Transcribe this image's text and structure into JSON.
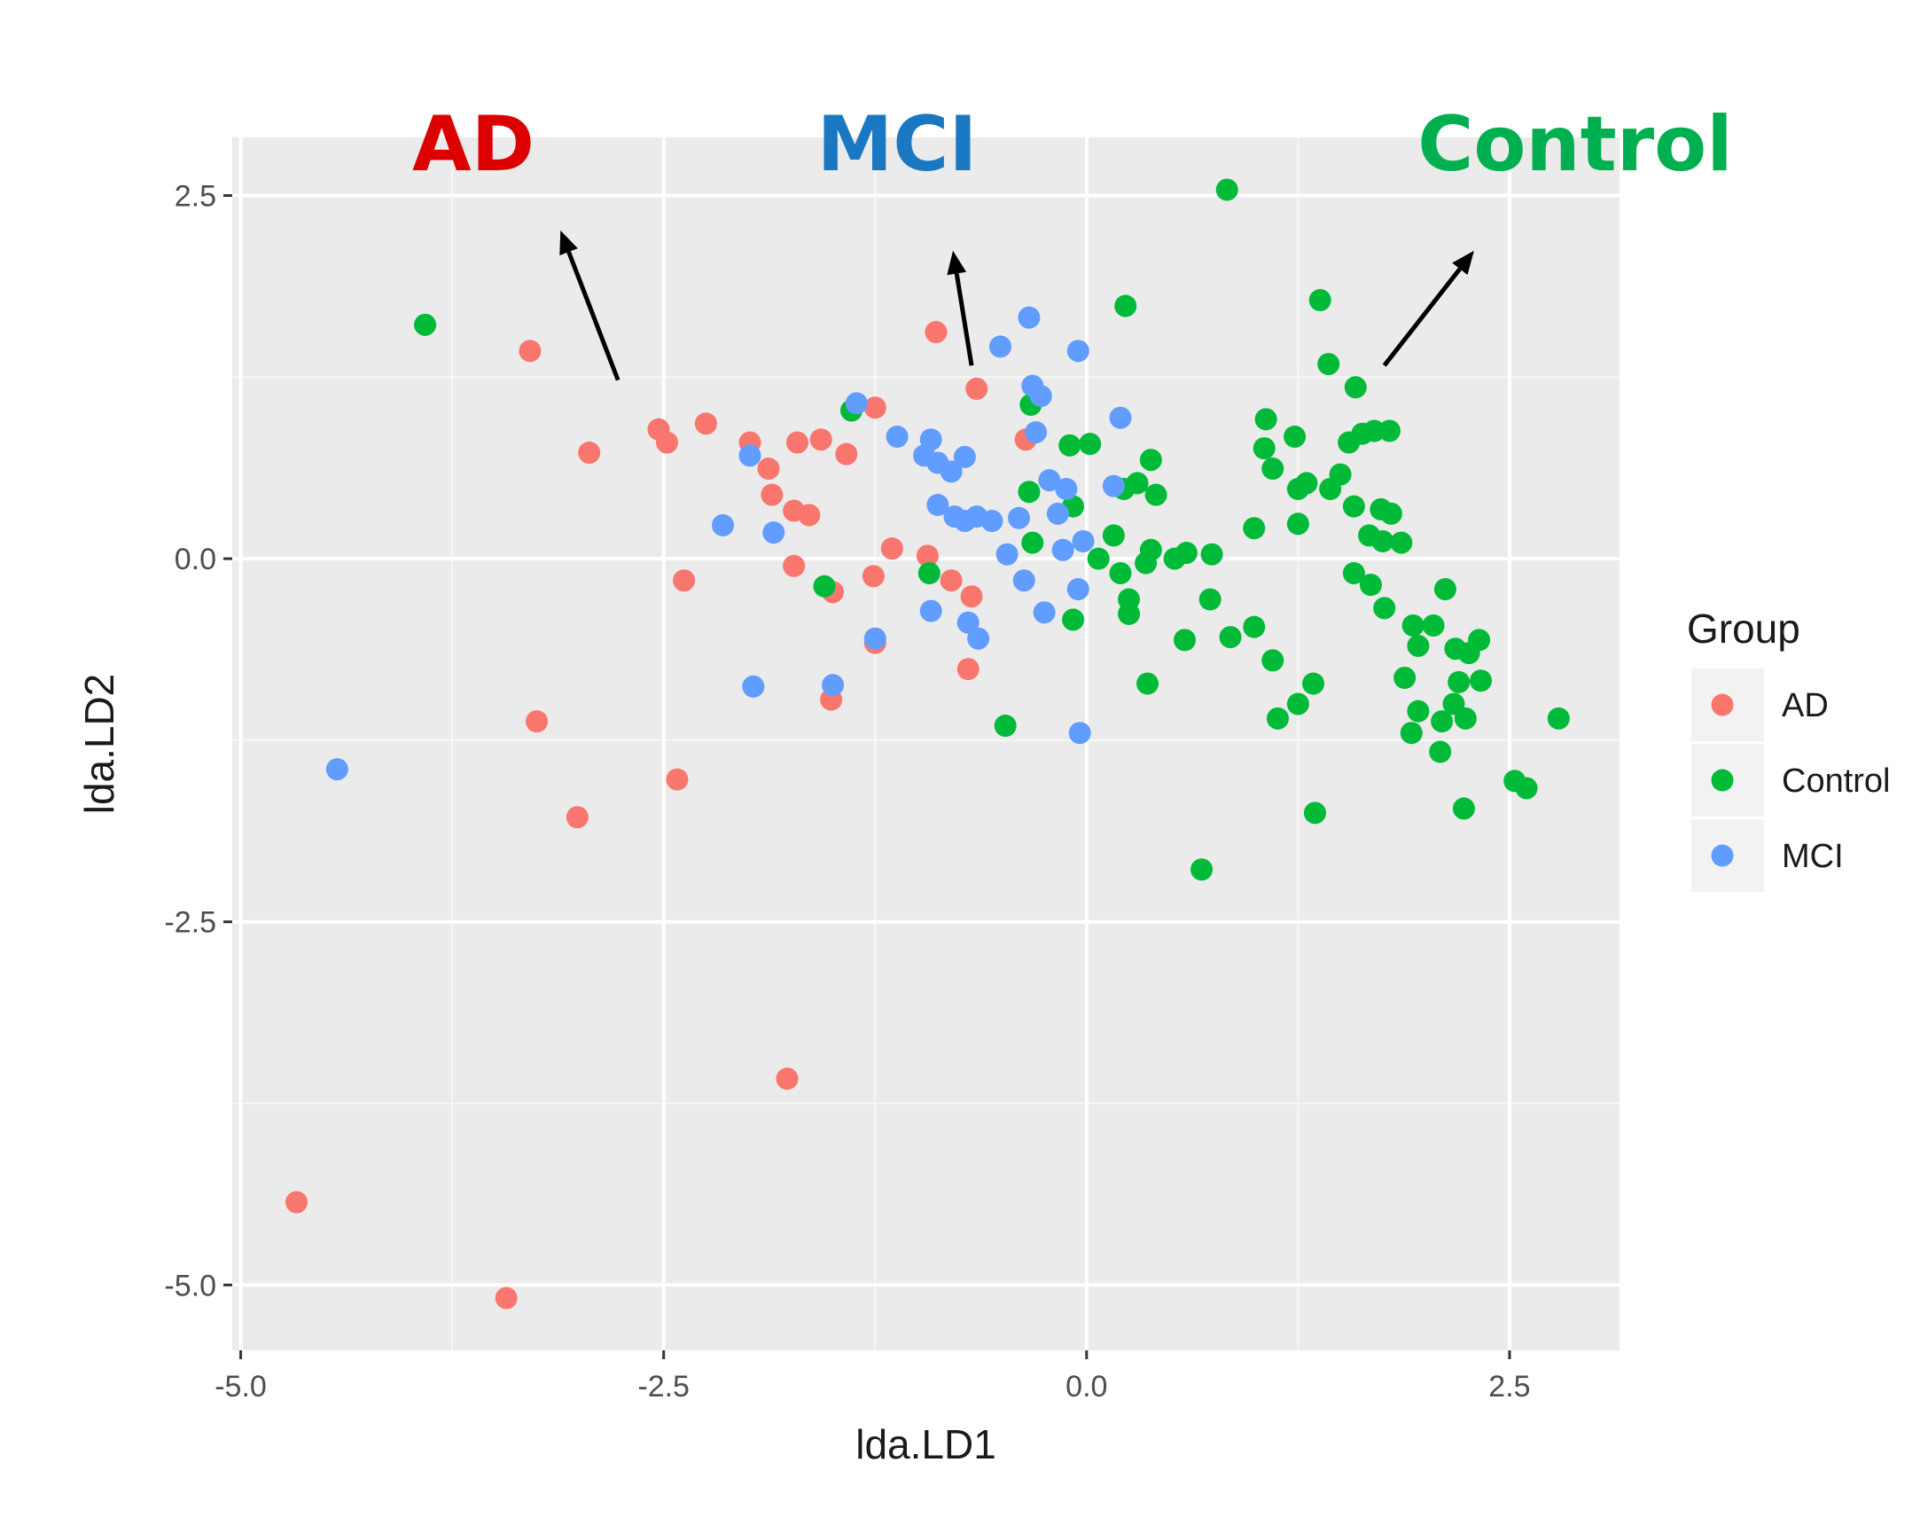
{
  "chart_data": {
    "type": "scatter",
    "xlabel": "lda.LD1",
    "ylabel": "lda.LD2",
    "xlim": [
      -5.05,
      3.15
    ],
    "ylim": [
      -5.45,
      2.9
    ],
    "xticks": [
      -5.0,
      -2.5,
      0.0,
      2.5
    ],
    "xtick_labels": [
      "-5.0",
      "-2.5",
      "0.0",
      "2.5"
    ],
    "yticks": [
      2.5,
      0.0,
      -2.5,
      -5.0
    ],
    "ytick_labels": [
      "2.5",
      "0.0",
      "-2.5",
      "-5.0"
    ],
    "grid": true,
    "legend": {
      "title": "Group",
      "position": "right",
      "entries": [
        "AD",
        "Control",
        "MCI"
      ]
    },
    "annotations": [
      {
        "label": "AD",
        "color": "#dd0000"
      },
      {
        "label": "MCI",
        "color": "#1a78c2"
      },
      {
        "label": "Control",
        "color": "#00b050"
      }
    ],
    "colors": {
      "AD": "#f8766d",
      "Control": "#00ba38",
      "MCI": "#619cff"
    },
    "series": [
      {
        "name": "AD",
        "points": [
          [
            -3.29,
            1.43
          ],
          [
            -2.94,
            0.73
          ],
          [
            -2.53,
            0.89
          ],
          [
            -2.48,
            0.8
          ],
          [
            -2.25,
            0.93
          ],
          [
            -1.99,
            0.8
          ],
          [
            -1.88,
            0.62
          ],
          [
            -1.86,
            0.44
          ],
          [
            -1.73,
            0.33
          ],
          [
            -1.64,
            0.3
          ],
          [
            -1.71,
            0.8
          ],
          [
            -1.57,
            0.82
          ],
          [
            -1.42,
            0.72
          ],
          [
            -1.25,
            1.04
          ],
          [
            -1.73,
            -0.05
          ],
          [
            -1.5,
            -0.23
          ],
          [
            -1.26,
            -0.12
          ],
          [
            -1.15,
            0.07
          ],
          [
            -0.94,
            0.02
          ],
          [
            -0.8,
            -0.15
          ],
          [
            -0.68,
            -0.26
          ],
          [
            -0.7,
            -0.76
          ],
          [
            -1.25,
            -0.58
          ],
          [
            -1.51,
            -0.97
          ],
          [
            -0.89,
            1.56
          ],
          [
            -0.65,
            1.17
          ],
          [
            -0.36,
            0.82
          ],
          [
            -2.38,
            -0.15
          ],
          [
            -3.25,
            -1.12
          ],
          [
            -2.42,
            -1.52
          ],
          [
            -3.01,
            -1.78
          ],
          [
            -1.77,
            -3.58
          ],
          [
            -4.67,
            -4.43
          ],
          [
            -3.43,
            -5.09
          ]
        ]
      },
      {
        "name": "Control",
        "points": [
          [
            -3.91,
            1.61
          ],
          [
            0.83,
            2.54
          ],
          [
            0.23,
            1.74
          ],
          [
            1.38,
            1.78
          ],
          [
            1.43,
            1.34
          ],
          [
            1.59,
            1.18
          ],
          [
            -1.39,
            1.02
          ],
          [
            -0.33,
            1.06
          ],
          [
            -0.1,
            0.78
          ],
          [
            0.02,
            0.79
          ],
          [
            0.3,
            0.52
          ],
          [
            0.38,
            0.68
          ],
          [
            0.41,
            0.44
          ],
          [
            0.22,
            0.48
          ],
          [
            -0.34,
            0.46
          ],
          [
            -0.08,
            0.36
          ],
          [
            0.16,
            0.16
          ],
          [
            -0.32,
            0.11
          ],
          [
            0.07,
            0.0
          ],
          [
            0.2,
            -0.1
          ],
          [
            0.35,
            -0.03
          ],
          [
            0.38,
            0.06
          ],
          [
            0.52,
            0.0
          ],
          [
            0.59,
            0.04
          ],
          [
            0.74,
            0.03
          ],
          [
            0.73,
            -0.28
          ],
          [
            0.58,
            -0.56
          ],
          [
            0.85,
            -0.54
          ],
          [
            0.99,
            -0.47
          ],
          [
            1.1,
            -0.7
          ],
          [
            1.13,
            -1.1
          ],
          [
            1.25,
            -1.0
          ],
          [
            1.34,
            -0.86
          ],
          [
            1.35,
            -1.75
          ],
          [
            0.36,
            -0.86
          ],
          [
            -0.48,
            -1.15
          ],
          [
            0.68,
            -2.14
          ],
          [
            -1.55,
            -0.19
          ],
          [
            -0.93,
            -0.1
          ],
          [
            -0.08,
            -0.42
          ],
          [
            0.25,
            -0.28
          ],
          [
            0.25,
            -0.38
          ],
          [
            1.06,
            0.96
          ],
          [
            1.23,
            0.84
          ],
          [
            1.05,
            0.76
          ],
          [
            1.1,
            0.62
          ],
          [
            1.25,
            0.48
          ],
          [
            1.3,
            0.52
          ],
          [
            1.44,
            0.48
          ],
          [
            1.5,
            0.58
          ],
          [
            1.55,
            0.8
          ],
          [
            1.63,
            0.86
          ],
          [
            1.7,
            0.88
          ],
          [
            1.79,
            0.88
          ],
          [
            1.58,
            0.36
          ],
          [
            1.74,
            0.34
          ],
          [
            1.8,
            0.31
          ],
          [
            1.67,
            0.16
          ],
          [
            1.75,
            0.12
          ],
          [
            1.86,
            0.11
          ],
          [
            1.58,
            -0.1
          ],
          [
            1.68,
            -0.18
          ],
          [
            1.76,
            -0.34
          ],
          [
            1.25,
            0.24
          ],
          [
            0.99,
            0.21
          ],
          [
            1.93,
            -0.46
          ],
          [
            1.96,
            -0.6
          ],
          [
            2.05,
            -0.46
          ],
          [
            2.12,
            -0.21
          ],
          [
            2.18,
            -0.62
          ],
          [
            2.26,
            -0.65
          ],
          [
            2.32,
            -0.56
          ],
          [
            2.33,
            -0.84
          ],
          [
            2.2,
            -0.85
          ],
          [
            1.88,
            -0.82
          ],
          [
            1.96,
            -1.05
          ],
          [
            1.92,
            -1.2
          ],
          [
            2.1,
            -1.12
          ],
          [
            2.17,
            -1.0
          ],
          [
            2.24,
            -1.1
          ],
          [
            2.09,
            -1.33
          ],
          [
            2.23,
            -1.72
          ],
          [
            2.53,
            -1.53
          ],
          [
            2.6,
            -1.58
          ],
          [
            2.79,
            -1.1
          ]
        ]
      },
      {
        "name": "MCI",
        "points": [
          [
            -4.43,
            -1.45
          ],
          [
            -2.15,
            0.23
          ],
          [
            -1.85,
            0.18
          ],
          [
            -1.99,
            0.71
          ],
          [
            -1.97,
            -0.88
          ],
          [
            -1.5,
            -0.87
          ],
          [
            -1.36,
            1.07
          ],
          [
            -1.12,
            0.84
          ],
          [
            -0.96,
            0.71
          ],
          [
            -0.92,
            0.82
          ],
          [
            -0.88,
            0.66
          ],
          [
            -0.8,
            0.6
          ],
          [
            -0.72,
            0.7
          ],
          [
            -0.88,
            0.37
          ],
          [
            -0.78,
            0.29
          ],
          [
            -0.72,
            0.26
          ],
          [
            -0.65,
            0.29
          ],
          [
            -0.56,
            0.26
          ],
          [
            -0.47,
            0.03
          ],
          [
            -0.4,
            0.28
          ],
          [
            -0.32,
            1.19
          ],
          [
            -0.27,
            1.12
          ],
          [
            -0.34,
            1.66
          ],
          [
            -0.05,
            1.43
          ],
          [
            -0.51,
            1.46
          ],
          [
            -0.3,
            0.87
          ],
          [
            -0.22,
            0.54
          ],
          [
            -0.17,
            0.31
          ],
          [
            -0.14,
            0.06
          ],
          [
            -0.02,
            0.12
          ],
          [
            -0.12,
            0.48
          ],
          [
            0.16,
            0.5
          ],
          [
            0.2,
            0.97
          ],
          [
            -0.37,
            -0.15
          ],
          [
            -0.25,
            -0.37
          ],
          [
            -0.05,
            -0.21
          ],
          [
            -0.04,
            -1.2
          ],
          [
            -0.92,
            -0.36
          ],
          [
            -0.7,
            -0.44
          ],
          [
            -0.64,
            -0.55
          ],
          [
            -1.25,
            -0.55
          ]
        ]
      }
    ]
  }
}
